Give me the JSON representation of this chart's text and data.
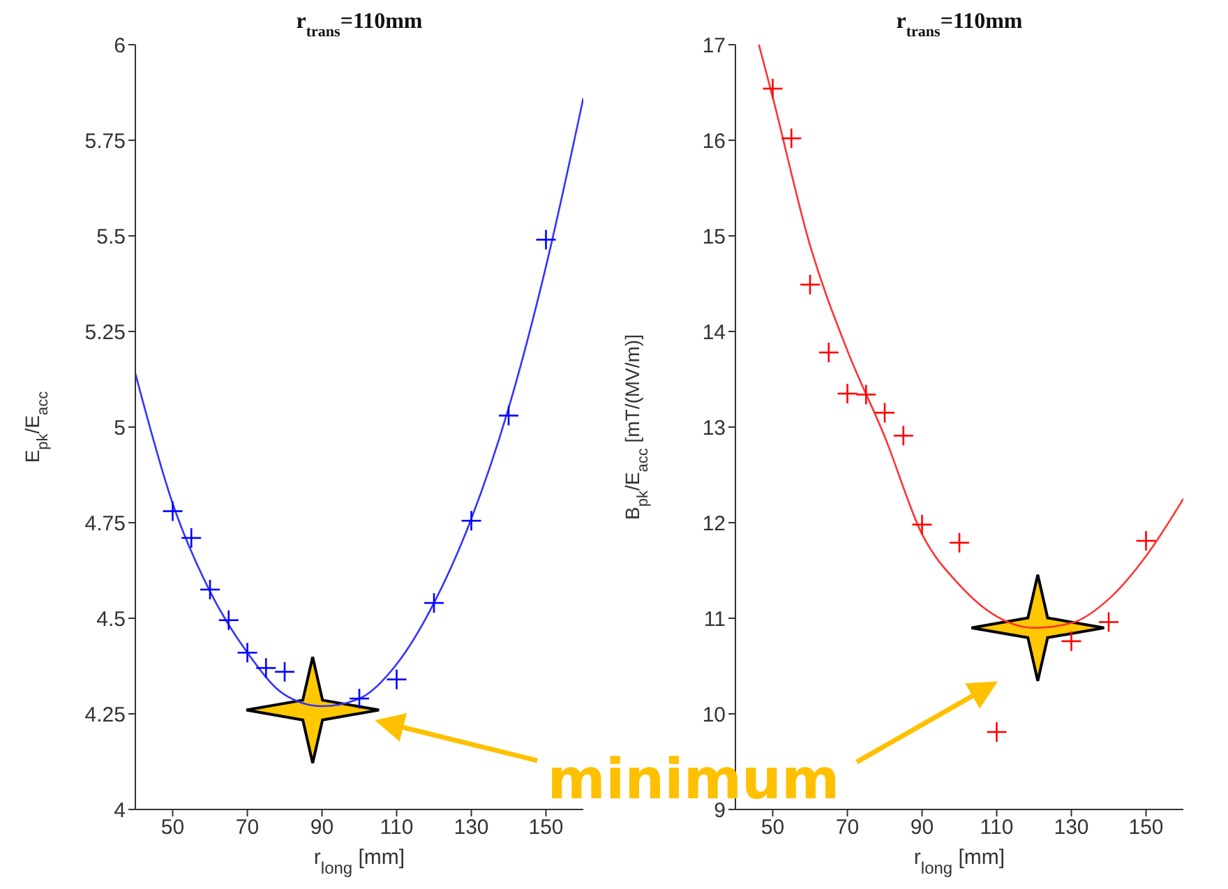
{
  "chart_data": [
    {
      "type": "scatter",
      "title": "r$_{trans}$=110mm",
      "xlabel": "r$_{long}$ [mm]",
      "ylabel": "E$_{pk}$/E$_{acc}$",
      "xlim": [
        40,
        160
      ],
      "xticks": [
        50,
        70,
        90,
        110,
        130,
        150
      ],
      "ylim": [
        4,
        6
      ],
      "yticks": [
        4,
        4.25,
        4.5,
        4.75,
        5,
        5.25,
        5.5,
        5.75,
        6
      ],
      "annotations": [
        "minimum"
      ],
      "series": [
        {
          "marker": "cross",
          "color": "#0000ff",
          "x": [
            50,
            55,
            60,
            65,
            70,
            75,
            80,
            100,
            110,
            120,
            130,
            140,
            150
          ],
          "values": [
            4.78,
            4.71,
            4.575,
            4.495,
            4.41,
            4.37,
            4.36,
            4.29,
            4.34,
            4.54,
            4.755,
            5.03,
            5.49
          ]
        },
        {
          "type": "line",
          "marker": "none",
          "line_style": "solid",
          "color": "#3333ff",
          "x": [
            40,
            50,
            60,
            70,
            80,
            90,
            100,
            110,
            120,
            130,
            140,
            150,
            160
          ],
          "values": [
            5.14,
            4.8,
            4.57,
            4.41,
            4.3,
            4.27,
            4.29,
            4.38,
            4.54,
            4.76,
            5.05,
            5.42,
            5.86
          ]
        }
      ]
    },
    {
      "type": "scatter",
      "title": "r$_{trans}$=110mm",
      "xlabel": "r$_{long}$ [mm]",
      "ylabel": "B$_{pk}$/E$_{acc}$ [mT/(MV/m)]",
      "xlim": [
        40,
        160
      ],
      "xticks": [
        50,
        70,
        90,
        110,
        130,
        150
      ],
      "ylim": [
        9,
        17
      ],
      "yticks": [
        9,
        10,
        11,
        12,
        13,
        14,
        15,
        16,
        17
      ],
      "series": [
        {
          "marker": "cross",
          "color": "#ff0000",
          "x": [
            50,
            55,
            60,
            65,
            70,
            75,
            80,
            85,
            90,
            100,
            110,
            130,
            140,
            150
          ],
          "values": [
            16.54,
            16.02,
            14.49,
            13.78,
            13.35,
            13.34,
            13.15,
            12.91,
            11.98,
            11.79,
            9.81,
            10.76,
            10.96,
            11.81
          ]
        },
        {
          "type": "line",
          "marker": "none",
          "line_style": "solid",
          "color": "#ff3333",
          "x": [
            46.3,
            50,
            60,
            70,
            80,
            90,
            100,
            110,
            120,
            130,
            140,
            150,
            160
          ],
          "values": [
            17,
            16.45,
            14.9,
            13.8,
            12.9,
            11.88,
            11.35,
            11.02,
            10.9,
            10.95,
            11.2,
            11.65,
            12.25
          ]
        }
      ]
    }
  ]
}
